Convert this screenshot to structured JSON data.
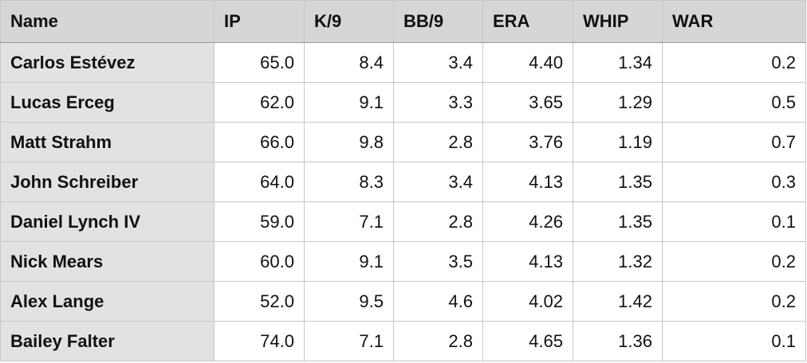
{
  "table": {
    "header": [
      "Name",
      "IP",
      "K/9",
      "BB/9",
      "ERA",
      "WHIP",
      "WAR"
    ],
    "rows": [
      [
        "Carlos Estévez",
        "65.0",
        "8.4",
        "3.4",
        "4.40",
        "1.34",
        "0.2"
      ],
      [
        "Lucas Erceg",
        "62.0",
        "9.1",
        "3.3",
        "3.65",
        "1.29",
        "0.5"
      ],
      [
        "Matt Strahm",
        "66.0",
        "9.8",
        "2.8",
        "3.76",
        "1.19",
        "0.7"
      ],
      [
        "John Schreiber",
        "64.0",
        "8.3",
        "3.4",
        "4.13",
        "1.35",
        "0.3"
      ],
      [
        "Daniel Lynch IV",
        "59.0",
        "7.1",
        "2.8",
        "4.26",
        "1.35",
        "0.1"
      ],
      [
        "Nick Mears",
        "60.0",
        "9.1",
        "3.5",
        "4.13",
        "1.32",
        "0.2"
      ],
      [
        "Alex Lange",
        "52.0",
        "9.5",
        "4.6",
        "4.02",
        "1.42",
        "0.2"
      ],
      [
        "Bailey Falter",
        "74.0",
        "7.1",
        "2.8",
        "4.65",
        "1.36",
        "0.1"
      ]
    ]
  }
}
